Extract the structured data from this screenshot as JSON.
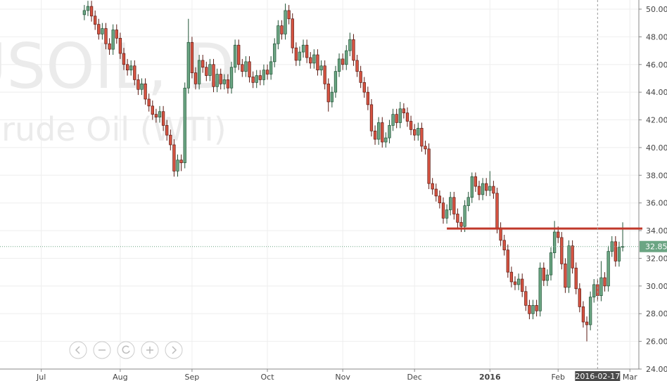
{
  "chart_data": {
    "type": "candlestick",
    "symbol": "USOIL, D",
    "description": "Crude Oil (WTI)",
    "up_color": "#6ba583",
    "down_color": "#d75442",
    "open": [
      49.6,
      49.9,
      50.2,
      49.5,
      48.9,
      48.2,
      48.6,
      47.5,
      47.1,
      48.5,
      47.9,
      46.8,
      46.0,
      45.6,
      45.9,
      44.9,
      44.2,
      44.6,
      43.5,
      43.0,
      42.4,
      42.2,
      42.6,
      41.6,
      40.9,
      40.2,
      38.3,
      39.1,
      38.9,
      44.3,
      47.6,
      45.4,
      44.6,
      46.3,
      45.8,
      45.2,
      46.0,
      44.4,
      45.3,
      44.6,
      44.9,
      44.3,
      45.8,
      47.4,
      46.0,
      45.5,
      46.2,
      45.1,
      44.7,
      45.2,
      44.9,
      45.6,
      45.3,
      46.2,
      47.5,
      48.8,
      48.2,
      49.9,
      49.3,
      47.2,
      46.3,
      46.9,
      47.4,
      46.5,
      46.1,
      46.7,
      45.6,
      45.9,
      44.6,
      43.3,
      44.0,
      45.5,
      46.4,
      46.0,
      47.0,
      47.8,
      46.3,
      45.5,
      44.7,
      44.0,
      43.1,
      41.2,
      40.6,
      41.8,
      40.4,
      40.7,
      41.6,
      42.4,
      41.8,
      42.8,
      42.5,
      41.9,
      41.3,
      40.9,
      41.4,
      40.1,
      39.9,
      37.4,
      37.0,
      36.5,
      36.0,
      34.9,
      35.5,
      36.4,
      35.2,
      34.6,
      34.3,
      35.8,
      36.4,
      37.9,
      37.2,
      36.6,
      37.4,
      36.9,
      37.2,
      36.7,
      34.2,
      33.3,
      32.6,
      31.0,
      30.3,
      30.1,
      30.5,
      29.6,
      28.6,
      28.0,
      28.6,
      28.2,
      31.3,
      30.4,
      30.8,
      32.4,
      33.9,
      33.5,
      31.6,
      29.9,
      32.9,
      31.3,
      29.8,
      28.5,
      27.4,
      27.2,
      29.2,
      30.1,
      29.3,
      30.6,
      30.0,
      32.5,
      33.2,
      31.8,
      32.8
    ],
    "high": [
      50.3,
      50.6,
      50.6,
      49.9,
      49.3,
      49.0,
      49.0,
      47.9,
      48.9,
      48.9,
      48.3,
      47.2,
      46.4,
      46.3,
      46.3,
      45.3,
      45.0,
      45.0,
      43.9,
      43.4,
      42.8,
      43.0,
      43.0,
      42.0,
      41.3,
      40.6,
      39.5,
      39.5,
      44.7,
      49.3,
      48.0,
      45.8,
      46.7,
      46.7,
      46.2,
      46.4,
      46.4,
      45.7,
      45.7,
      45.3,
      45.3,
      46.2,
      47.8,
      47.8,
      46.4,
      46.6,
      46.6,
      45.5,
      45.6,
      45.6,
      46.0,
      46.0,
      46.6,
      47.9,
      49.2,
      49.2,
      50.4,
      50.3,
      49.7,
      47.6,
      47.3,
      47.8,
      47.8,
      46.9,
      47.1,
      47.1,
      46.3,
      46.3,
      45.0,
      44.4,
      45.9,
      46.8,
      46.8,
      47.4,
      48.3,
      48.2,
      46.7,
      45.9,
      45.1,
      44.4,
      43.5,
      41.6,
      42.2,
      42.2,
      41.1,
      42.0,
      42.8,
      42.8,
      43.3,
      43.2,
      42.9,
      42.3,
      41.7,
      41.8,
      41.8,
      40.5,
      40.3,
      37.8,
      37.4,
      36.9,
      36.4,
      35.9,
      36.8,
      36.8,
      35.6,
      35.0,
      36.2,
      36.8,
      38.2,
      38.2,
      37.6,
      37.8,
      37.8,
      38.3,
      37.6,
      37.1,
      34.6,
      33.7,
      33.0,
      31.4,
      30.7,
      30.9,
      30.9,
      30.0,
      29.0,
      29.0,
      29.0,
      31.7,
      31.7,
      31.2,
      32.8,
      34.7,
      34.3,
      33.9,
      32.0,
      33.3,
      33.3,
      31.7,
      30.2,
      28.9,
      27.8,
      29.6,
      30.5,
      30.5,
      31.8,
      31.0,
      32.9,
      33.6,
      33.6,
      33.2,
      34.6
    ],
    "low": [
      49.2,
      49.5,
      49.1,
      48.5,
      47.8,
      47.8,
      47.1,
      46.7,
      46.7,
      47.5,
      46.4,
      45.6,
      45.2,
      45.2,
      44.5,
      43.8,
      43.8,
      43.1,
      42.6,
      42.0,
      41.8,
      41.8,
      41.2,
      40.5,
      39.8,
      37.9,
      37.9,
      38.3,
      38.5,
      43.9,
      45.0,
      44.2,
      44.2,
      45.4,
      44.8,
      44.8,
      44.0,
      44.0,
      44.2,
      44.2,
      43.9,
      43.9,
      45.4,
      45.6,
      45.1,
      45.1,
      44.7,
      44.3,
      44.3,
      44.5,
      44.5,
      44.9,
      44.9,
      45.8,
      47.1,
      47.8,
      47.8,
      48.9,
      46.8,
      45.9,
      45.9,
      46.5,
      46.1,
      45.7,
      45.7,
      45.2,
      45.2,
      44.2,
      42.6,
      42.9,
      43.6,
      45.1,
      45.6,
      45.6,
      46.6,
      45.9,
      45.1,
      44.3,
      43.6,
      42.7,
      40.8,
      40.2,
      40.2,
      40.0,
      40.0,
      40.3,
      41.2,
      41.4,
      41.4,
      42.1,
      41.5,
      40.9,
      40.5,
      40.5,
      39.7,
      39.5,
      37.0,
      36.6,
      36.1,
      35.6,
      34.5,
      34.5,
      35.1,
      34.8,
      34.2,
      33.9,
      33.9,
      35.4,
      36.0,
      36.8,
      36.2,
      36.2,
      36.5,
      36.5,
      36.3,
      33.8,
      32.9,
      32.2,
      30.6,
      29.9,
      29.7,
      29.7,
      29.2,
      28.2,
      27.6,
      27.6,
      27.8,
      27.8,
      30.0,
      30.0,
      30.4,
      32.0,
      33.1,
      31.2,
      29.5,
      29.5,
      30.9,
      29.4,
      28.1,
      27.0,
      26.0,
      26.8,
      28.8,
      28.9,
      28.9,
      29.6,
      29.6,
      32.1,
      31.4,
      31.4,
      32.5
    ],
    "close": [
      49.9,
      50.2,
      49.5,
      48.9,
      48.2,
      48.6,
      47.5,
      47.1,
      48.5,
      47.9,
      46.8,
      46.0,
      45.6,
      45.9,
      44.9,
      44.2,
      44.6,
      43.5,
      43.0,
      42.4,
      42.2,
      42.6,
      41.6,
      40.9,
      40.2,
      38.3,
      39.1,
      38.9,
      44.3,
      47.6,
      45.4,
      44.6,
      46.3,
      45.8,
      45.2,
      46.0,
      44.4,
      45.3,
      44.6,
      44.9,
      44.3,
      45.8,
      47.4,
      46.0,
      45.5,
      46.2,
      45.1,
      44.7,
      45.2,
      44.9,
      45.6,
      45.3,
      46.2,
      47.5,
      48.8,
      48.2,
      49.9,
      49.3,
      47.2,
      46.3,
      46.9,
      47.4,
      46.5,
      46.1,
      46.7,
      45.6,
      45.9,
      44.6,
      43.3,
      44.0,
      45.5,
      46.4,
      46.0,
      47.0,
      47.8,
      46.3,
      45.5,
      44.7,
      44.0,
      43.1,
      41.2,
      40.6,
      41.8,
      40.4,
      40.7,
      41.6,
      42.4,
      41.8,
      42.8,
      42.5,
      41.9,
      41.3,
      40.9,
      41.4,
      40.1,
      39.9,
      37.4,
      37.0,
      36.5,
      36.0,
      34.9,
      35.5,
      36.4,
      35.2,
      34.6,
      34.3,
      35.8,
      36.4,
      37.9,
      37.2,
      36.6,
      37.4,
      36.9,
      37.2,
      36.7,
      34.2,
      33.3,
      32.6,
      31.0,
      30.3,
      30.1,
      30.5,
      29.6,
      28.6,
      28.0,
      28.6,
      28.2,
      31.3,
      30.4,
      30.8,
      32.4,
      33.9,
      33.5,
      31.6,
      29.9,
      32.9,
      31.3,
      29.8,
      28.5,
      27.4,
      27.2,
      29.2,
      30.1,
      29.3,
      30.6,
      30.0,
      32.5,
      33.2,
      31.8,
      32.8,
      32.85
    ],
    "xlim": [
      -23.5,
      154.5
    ],
    "xticks": [
      {
        "value": -12,
        "label": "Jul"
      },
      {
        "value": 10,
        "label": "Aug"
      },
      {
        "value": 30,
        "label": "Sep"
      },
      {
        "value": 51,
        "label": "Oct"
      },
      {
        "value": 72,
        "label": "Nov"
      },
      {
        "value": 92,
        "label": "Dec"
      },
      {
        "value": 113,
        "label": "2016"
      },
      {
        "value": 132,
        "label": "Feb"
      },
      {
        "value": 152,
        "label": "Mar"
      }
    ],
    "ylim": [
      24,
      50.66
    ],
    "yticks": [
      {
        "value": 24,
        "label": "24.00"
      },
      {
        "value": 26,
        "label": "26.00"
      },
      {
        "value": 28,
        "label": "28.00"
      },
      {
        "value": 30,
        "label": "30.00"
      },
      {
        "value": 32,
        "label": "32.00"
      },
      {
        "value": 34,
        "label": "34.00"
      },
      {
        "value": 36,
        "label": "36.00"
      },
      {
        "value": 38,
        "label": "38.00"
      },
      {
        "value": 40,
        "label": "40.00"
      },
      {
        "value": 42,
        "label": "42.00"
      },
      {
        "value": 44,
        "label": "44.00"
      },
      {
        "value": 46,
        "label": "46.00"
      },
      {
        "value": 48,
        "label": "48.00"
      },
      {
        "value": 50,
        "label": "50.00"
      }
    ],
    "grid": true,
    "resistance": {
      "value": 34.15,
      "from": 101,
      "color": "#c0392b"
    },
    "crosshair": {
      "x": 143,
      "label": "2016-02-17"
    }
  }
}
